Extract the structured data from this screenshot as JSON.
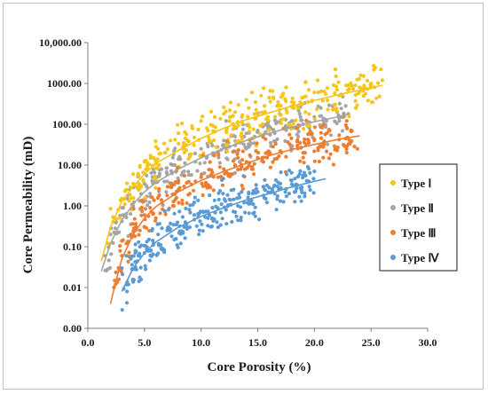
{
  "chart_data": {
    "type": "scatter",
    "title": "",
    "xlabel": "Core Porosity (%)",
    "ylabel": "Core Permeability (mD)",
    "xlim": [
      0,
      30
    ],
    "x_scale": "linear",
    "y_scale": "log",
    "x_ticks": [
      "0.0",
      "5.0",
      "10.0",
      "15.0",
      "20.0",
      "25.0",
      "30.0"
    ],
    "y_ticks": [
      "0.00",
      "0.01",
      "0.10",
      "1.00",
      "10.00",
      "100.00",
      "1000.00",
      "10,000.00"
    ],
    "grid": false,
    "legend_position": "right",
    "series": [
      {
        "name": "Type Ⅰ",
        "color": "#f5c518",
        "trend": [
          [
            1.2,
            0.045
          ],
          [
            2,
            0.3
          ],
          [
            3,
            1.3
          ],
          [
            4,
            3.0
          ],
          [
            5,
            6.0
          ],
          [
            6,
            11
          ],
          [
            8,
            23
          ],
          [
            10,
            45
          ],
          [
            12,
            80
          ],
          [
            14,
            130
          ],
          [
            16,
            190
          ],
          [
            18,
            280
          ],
          [
            20,
            380
          ],
          [
            22,
            520
          ],
          [
            24,
            680
          ],
          [
            26,
            900
          ]
        ],
        "points": [
          [
            1.8,
            0.12
          ],
          [
            2.3,
            0.5
          ],
          [
            3.0,
            1.5
          ],
          [
            3.4,
            2.5
          ],
          [
            4.0,
            6.0
          ],
          [
            4.5,
            3.5
          ],
          [
            5.0,
            12
          ],
          [
            5.3,
            8
          ],
          [
            5.8,
            15
          ],
          [
            6.2,
            25
          ],
          [
            6.8,
            20
          ],
          [
            7.3,
            40
          ],
          [
            8.0,
            60
          ],
          [
            8.6,
            45
          ],
          [
            9.2,
            90
          ],
          [
            10.0,
            120
          ],
          [
            10.6,
            70
          ],
          [
            11.2,
            150
          ],
          [
            12.0,
            180
          ],
          [
            12.5,
            120
          ],
          [
            13.0,
            200
          ],
          [
            13.3,
            300
          ],
          [
            13.6,
            150
          ],
          [
            14.0,
            400
          ],
          [
            14.2,
            250
          ],
          [
            14.5,
            600
          ],
          [
            14.8,
            350
          ],
          [
            15.0,
            180
          ],
          [
            15.3,
            500
          ],
          [
            15.6,
            280
          ],
          [
            16.0,
            450
          ],
          [
            16.3,
            650
          ],
          [
            16.8,
            300
          ],
          [
            17.2,
            500
          ],
          [
            17.5,
            800
          ],
          [
            18.0,
            350
          ],
          [
            19.0,
            450
          ],
          [
            20.0,
            600
          ],
          [
            21.0,
            550
          ],
          [
            22.0,
            700
          ],
          [
            23.0,
            900
          ],
          [
            24.0,
            800
          ],
          [
            25.0,
            1000
          ],
          [
            26.0,
            1200
          ]
        ]
      },
      {
        "name": "Type Ⅱ",
        "color": "#a5a5a5",
        "trend": [
          [
            1.2,
            0.025
          ],
          [
            2,
            0.12
          ],
          [
            3,
            0.45
          ],
          [
            4,
            1.1
          ],
          [
            5,
            2.2
          ],
          [
            6,
            3.7
          ],
          [
            8,
            8
          ],
          [
            10,
            15
          ],
          [
            12,
            25
          ],
          [
            14,
            40
          ],
          [
            16,
            60
          ],
          [
            18,
            85
          ],
          [
            20,
            115
          ],
          [
            22,
            150
          ],
          [
            23,
            175
          ]
        ],
        "points": [
          [
            1.5,
            0.06
          ],
          [
            2.0,
            0.2
          ],
          [
            2.5,
            0.4
          ],
          [
            3.0,
            0.9
          ],
          [
            3.5,
            1.5
          ],
          [
            4.0,
            1.0
          ],
          [
            4.5,
            2.5
          ],
          [
            5.0,
            3.5
          ],
          [
            5.5,
            2.0
          ],
          [
            6.0,
            5.0
          ],
          [
            6.5,
            8.0
          ],
          [
            7.0,
            4.0
          ],
          [
            7.5,
            10
          ],
          [
            8.0,
            14
          ],
          [
            8.5,
            7.0
          ],
          [
            9.0,
            18
          ],
          [
            9.5,
            12
          ],
          [
            10.0,
            25
          ],
          [
            10.5,
            16
          ],
          [
            11.0,
            30
          ],
          [
            11.5,
            20
          ],
          [
            12.0,
            40
          ],
          [
            12.5,
            28
          ],
          [
            13.0,
            50
          ],
          [
            13.5,
            35
          ],
          [
            14.0,
            60
          ],
          [
            14.5,
            45
          ],
          [
            15.0,
            70
          ],
          [
            15.5,
            55
          ],
          [
            16.0,
            90
          ],
          [
            16.5,
            60
          ],
          [
            17.0,
            110
          ],
          [
            17.5,
            80
          ],
          [
            18.0,
            120
          ],
          [
            19.0,
            100
          ],
          [
            20.0,
            150
          ],
          [
            21.0,
            130
          ],
          [
            22.0,
            200
          ],
          [
            23.0,
            180
          ]
        ]
      },
      {
        "name": "Type Ⅲ",
        "color": "#ed7d31",
        "trend": [
          [
            2.0,
            0.004
          ],
          [
            2.5,
            0.015
          ],
          [
            3,
            0.05
          ],
          [
            4,
            0.2
          ],
          [
            5,
            0.5
          ],
          [
            6,
            0.95
          ],
          [
            8,
            2.2
          ],
          [
            10,
            4.2
          ],
          [
            12,
            7
          ],
          [
            14,
            11
          ],
          [
            16,
            17
          ],
          [
            18,
            24
          ],
          [
            20,
            32
          ],
          [
            22,
            42
          ],
          [
            24,
            52
          ]
        ],
        "points": [
          [
            2.3,
            0.01
          ],
          [
            2.7,
            0.03
          ],
          [
            3.0,
            0.06
          ],
          [
            3.4,
            0.12
          ],
          [
            3.8,
            0.2
          ],
          [
            4.2,
            0.35
          ],
          [
            4.6,
            0.25
          ],
          [
            5.0,
            0.6
          ],
          [
            5.5,
            0.9
          ],
          [
            6.0,
            0.5
          ],
          [
            6.5,
            1.4
          ],
          [
            7.0,
            1.8
          ],
          [
            7.5,
            1.0
          ],
          [
            8.0,
            2.5
          ],
          [
            8.5,
            3.0
          ],
          [
            9.0,
            2.0
          ],
          [
            9.5,
            4.0
          ],
          [
            10.0,
            5.0
          ],
          [
            10.5,
            3.2
          ],
          [
            11.0,
            6.5
          ],
          [
            11.5,
            5.0
          ],
          [
            12.0,
            8.0
          ],
          [
            12.5,
            6.0
          ],
          [
            13.0,
            10
          ],
          [
            13.5,
            8.0
          ],
          [
            14.0,
            12
          ],
          [
            14.5,
            9.0
          ],
          [
            15.0,
            15
          ],
          [
            15.5,
            12
          ],
          [
            16.0,
            18
          ],
          [
            16.5,
            14
          ],
          [
            17.0,
            22
          ],
          [
            17.5,
            16
          ],
          [
            18.0,
            25
          ],
          [
            18.5,
            30
          ],
          [
            19.0,
            20
          ],
          [
            19.5,
            35
          ],
          [
            20.0,
            40
          ],
          [
            20.5,
            28
          ],
          [
            23.8,
            25
          ]
        ]
      },
      {
        "name": "Type Ⅳ",
        "color": "#5b9bd5",
        "trend": [
          [
            3.0,
            0.008
          ],
          [
            4,
            0.03
          ],
          [
            5,
            0.07
          ],
          [
            6,
            0.13
          ],
          [
            8,
            0.3
          ],
          [
            10,
            0.55
          ],
          [
            12,
            0.9
          ],
          [
            14,
            1.4
          ],
          [
            16,
            2.0
          ],
          [
            18,
            2.9
          ],
          [
            20,
            4.0
          ],
          [
            21,
            4.6
          ]
        ],
        "points": [
          [
            3.0,
            0.03
          ],
          [
            3.4,
            0.06
          ],
          [
            3.8,
            0.05
          ],
          [
            4.2,
            0.08
          ],
          [
            4.6,
            0.1
          ],
          [
            5.0,
            0.07
          ],
          [
            5.4,
            0.15
          ],
          [
            5.8,
            0.12
          ],
          [
            6.2,
            0.2
          ],
          [
            6.6,
            0.09
          ],
          [
            7.0,
            0.25
          ],
          [
            7.4,
            0.18
          ],
          [
            7.8,
            0.35
          ],
          [
            8.2,
            0.12
          ],
          [
            8.6,
            0.4
          ],
          [
            9.0,
            0.3
          ],
          [
            9.4,
            0.6
          ],
          [
            9.8,
            0.2
          ],
          [
            10.2,
            0.7
          ],
          [
            10.6,
            0.5
          ],
          [
            11.0,
            0.9
          ],
          [
            11.4,
            0.4
          ],
          [
            11.8,
            1.1
          ],
          [
            12.2,
            0.8
          ],
          [
            12.6,
            1.4
          ],
          [
            13.0,
            0.7
          ],
          [
            13.4,
            1.6
          ],
          [
            13.8,
            1.2
          ],
          [
            14.2,
            2.0
          ],
          [
            14.6,
            1.1
          ],
          [
            15.0,
            2.2
          ],
          [
            15.5,
            1.8
          ],
          [
            16.0,
            2.8
          ],
          [
            16.5,
            2.0
          ],
          [
            17.0,
            3.5
          ],
          [
            17.5,
            2.6
          ],
          [
            18.0,
            4.2
          ],
          [
            18.5,
            3.2
          ],
          [
            19.0,
            5.5
          ],
          [
            19.5,
            4.0
          ],
          [
            20.0,
            7.0
          ]
        ]
      }
    ]
  }
}
